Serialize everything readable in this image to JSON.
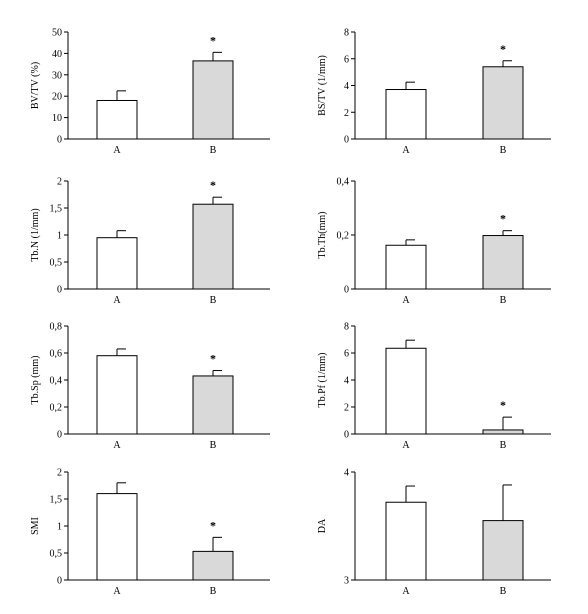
{
  "chart_data": [
    {
      "type": "bar",
      "ylabel": "BV/TV (%)",
      "categories": [
        "A",
        "B"
      ],
      "values": [
        18,
        36.5
      ],
      "errors": [
        4.5,
        4
      ],
      "colors": [
        "#ffffff",
        "#d9d9d9"
      ],
      "ylim": [
        0,
        50
      ],
      "yticks": [
        0,
        10,
        20,
        30,
        40,
        50
      ],
      "ytick_labels": [
        "0",
        "10",
        "20",
        "30",
        "40",
        "50"
      ],
      "annotations": [
        {
          "category": "B",
          "text": "*"
        }
      ]
    },
    {
      "type": "bar",
      "ylabel": "BS/TV (1/mm)",
      "categories": [
        "A",
        "B"
      ],
      "values": [
        3.7,
        5.4
      ],
      "errors": [
        0.55,
        0.45
      ],
      "colors": [
        "#ffffff",
        "#d9d9d9"
      ],
      "ylim": [
        0,
        8
      ],
      "yticks": [
        0,
        2,
        4,
        6,
        8
      ],
      "ytick_labels": [
        "0",
        "2",
        "4",
        "6",
        "8"
      ],
      "annotations": [
        {
          "category": "B",
          "text": "*"
        }
      ]
    },
    {
      "type": "bar",
      "ylabel": "Tb.N (1/mm)",
      "categories": [
        "A",
        "B"
      ],
      "values": [
        0.95,
        1.57
      ],
      "errors": [
        0.13,
        0.13
      ],
      "colors": [
        "#ffffff",
        "#d9d9d9"
      ],
      "ylim": [
        0,
        2
      ],
      "yticks": [
        0,
        0.5,
        1,
        1.5,
        2
      ],
      "ytick_labels": [
        "0",
        "0,5",
        "1",
        "1,5",
        "2"
      ],
      "annotations": [
        {
          "category": "B",
          "text": "*"
        }
      ]
    },
    {
      "type": "bar",
      "ylabel": "Tb.Th(mm)",
      "categories": [
        "A",
        "B"
      ],
      "values": [
        0.162,
        0.198
      ],
      "errors": [
        0.02,
        0.018
      ],
      "colors": [
        "#ffffff",
        "#d9d9d9"
      ],
      "ylim": [
        0,
        0.4
      ],
      "yticks": [
        0,
        0.2,
        0.4
      ],
      "ytick_labels": [
        "0",
        "0,2",
        "0,4"
      ],
      "annotations": [
        {
          "category": "B",
          "text": "*"
        }
      ]
    },
    {
      "type": "bar",
      "ylabel": "Tb.Sp (mm)",
      "categories": [
        "A",
        "B"
      ],
      "values": [
        0.58,
        0.43
      ],
      "errors": [
        0.05,
        0.04
      ],
      "colors": [
        "#ffffff",
        "#d9d9d9"
      ],
      "ylim": [
        0,
        0.8
      ],
      "yticks": [
        0,
        0.2,
        0.4,
        0.6,
        0.8
      ],
      "ytick_labels": [
        "0",
        "0,2",
        "0,4",
        "0,6",
        "0,8"
      ],
      "annotations": [
        {
          "category": "B",
          "text": "*"
        }
      ]
    },
    {
      "type": "bar",
      "ylabel": "Tb.Pf (1/mm)",
      "categories": [
        "A",
        "B"
      ],
      "values": [
        6.35,
        0.3
      ],
      "errors": [
        0.6,
        0.95
      ],
      "colors": [
        "#ffffff",
        "#d9d9d9"
      ],
      "ylim": [
        0,
        8
      ],
      "yticks": [
        0,
        2,
        4,
        6,
        8
      ],
      "ytick_labels": [
        "0",
        "2",
        "4",
        "6",
        "8"
      ],
      "annotations": [
        {
          "category": "B",
          "text": "*"
        }
      ]
    },
    {
      "type": "bar",
      "ylabel": "SMI",
      "categories": [
        "A",
        "B"
      ],
      "values": [
        1.6,
        0.53
      ],
      "errors": [
        0.2,
        0.26
      ],
      "colors": [
        "#ffffff",
        "#d9d9d9"
      ],
      "ylim": [
        0,
        2
      ],
      "yticks": [
        0,
        0.5,
        1,
        1.5,
        2
      ],
      "ytick_labels": [
        "0",
        "0,5",
        "1",
        "1,5",
        "2"
      ],
      "annotations": [
        {
          "category": "B",
          "text": "*"
        }
      ]
    },
    {
      "type": "bar",
      "ylabel": "DA",
      "categories": [
        "A",
        "B"
      ],
      "values": [
        3.72,
        3.55
      ],
      "errors": [
        0.15,
        0.33
      ],
      "colors": [
        "#ffffff",
        "#d9d9d9"
      ],
      "ylim": [
        3,
        4
      ],
      "yticks": [
        3,
        4
      ],
      "ytick_labels": [
        "3",
        "4"
      ],
      "annotations": []
    }
  ]
}
